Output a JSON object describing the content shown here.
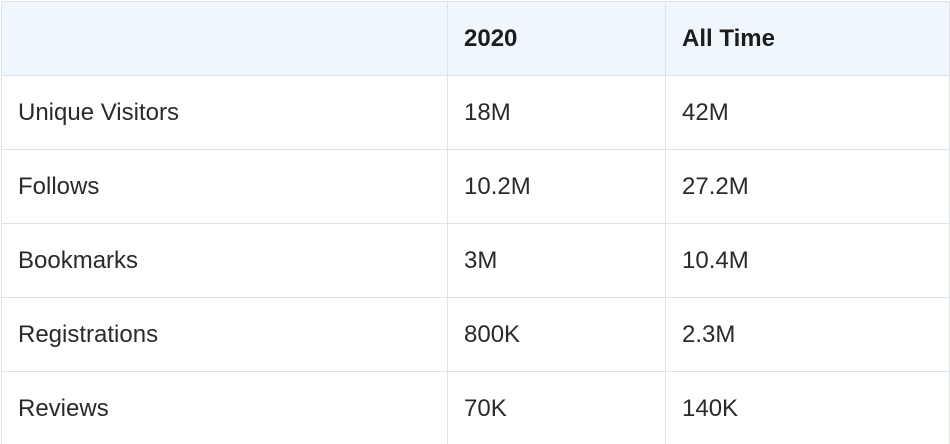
{
  "table": {
    "headers": [
      "",
      "2020",
      "All Time"
    ],
    "rows": [
      {
        "metric": "Unique Visitors",
        "y2020": "18M",
        "all_time": "42M"
      },
      {
        "metric": "Follows",
        "y2020": "10.2M",
        "all_time": "27.2M"
      },
      {
        "metric": "Bookmarks",
        "y2020": "3M",
        "all_time": "10.4M"
      },
      {
        "metric": "Registrations",
        "y2020": "800K",
        "all_time": "2.3M"
      },
      {
        "metric": "Reviews",
        "y2020": "70K",
        "all_time": "140K"
      }
    ]
  },
  "colors": {
    "header_background": "#eff7fd",
    "border": "#dfe3e8",
    "text": "#222222"
  }
}
